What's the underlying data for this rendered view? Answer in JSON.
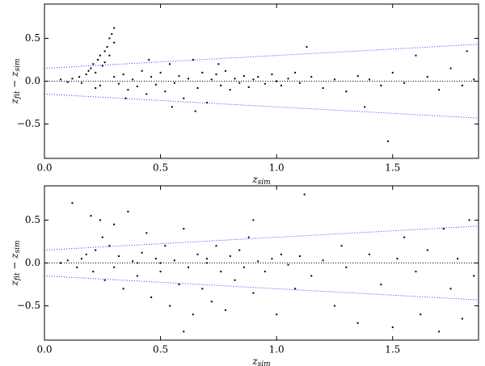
{
  "chart_data": [
    {
      "type": "scatter",
      "xlabel": [
        "z",
        "sim"
      ],
      "ylabel": [
        "z",
        "fit",
        " − z",
        "sim"
      ],
      "xlim": [
        0,
        1.87
      ],
      "ylim": [
        -0.9,
        0.9
      ],
      "xticks": [
        {
          "value": 0,
          "label": "0.0"
        },
        {
          "value": 0.5,
          "label": "0.5"
        },
        {
          "value": 1,
          "label": "1.0"
        },
        {
          "value": 1.5,
          "label": "1.5"
        }
      ],
      "yticks": [
        {
          "value": -0.5,
          "label": "−0.5"
        },
        {
          "value": 0,
          "label": "0.0"
        },
        {
          "value": 0.5,
          "label": "0.5"
        }
      ],
      "series": [
        {
          "color": "#000000",
          "x": [
            0.07,
            0.1,
            0.12,
            0.15,
            0.16,
            0.18,
            0.19,
            0.2,
            0.21,
            0.22,
            0.23,
            0.24,
            0.25,
            0.26,
            0.27,
            0.28,
            0.29,
            0.3,
            0.3,
            0.28,
            0.26,
            0.24,
            0.22,
            0.3,
            0.32,
            0.34,
            0.36,
            0.38,
            0.4,
            0.42,
            0.44,
            0.46,
            0.48,
            0.5,
            0.52,
            0.54,
            0.56,
            0.58,
            0.6,
            0.62,
            0.64,
            0.66,
            0.68,
            0.7,
            0.72,
            0.74,
            0.76,
            0.78,
            0.8,
            0.82,
            0.84,
            0.86,
            0.88,
            0.9,
            0.92,
            0.95,
            0.98,
            1.0,
            1.02,
            1.05,
            1.08,
            1.1,
            1.13,
            1.15,
            1.2,
            1.25,
            1.3,
            1.35,
            1.38,
            1.4,
            1.45,
            1.48,
            1.5,
            1.55,
            1.6,
            1.65,
            1.7,
            1.75,
            1.8,
            1.82,
            1.85,
            0.45,
            0.55,
            0.65,
            0.35,
            0.75
          ],
          "values": [
            0.02,
            -0.01,
            0.03,
            0.05,
            -0.02,
            0.08,
            0.12,
            0.15,
            0.2,
            0.1,
            0.25,
            0.3,
            0.18,
            0.35,
            0.4,
            0.5,
            0.55,
            0.62,
            0.45,
            0.3,
            0.22,
            -0.05,
            -0.08,
            0.05,
            -0.03,
            0.08,
            -0.1,
            0.02,
            -0.06,
            0.12,
            -0.15,
            0.05,
            -0.04,
            0.1,
            -0.12,
            0.2,
            -0.02,
            0.06,
            -0.2,
            0.03,
            0.25,
            -0.08,
            0.1,
            -0.25,
            0.02,
            0.08,
            -0.05,
            0.12,
            -0.1,
            0.03,
            -0.02,
            0.06,
            -0.07,
            0.02,
            0.05,
            -0.03,
            0.08,
            0.0,
            -0.05,
            0.03,
            0.1,
            -0.02,
            0.4,
            0.05,
            -0.08,
            0.02,
            -0.12,
            0.06,
            -0.3,
            0.02,
            -0.05,
            -0.7,
            0.1,
            -0.02,
            0.3,
            0.05,
            -0.1,
            0.15,
            -0.05,
            0.35,
            0.02,
            0.25,
            -0.3,
            -0.35,
            -0.2,
            0.2
          ]
        }
      ],
      "lines": [
        {
          "color": "#000000",
          "x": [
            0,
            1.87
          ],
          "values": [
            0,
            0
          ]
        },
        {
          "color": "#3333ff",
          "x": [
            0,
            1.87
          ],
          "values": [
            0.15,
            0.4305
          ]
        },
        {
          "color": "#3333ff",
          "x": [
            0,
            1.87
          ],
          "values": [
            -0.15,
            -0.4305
          ]
        }
      ]
    },
    {
      "type": "scatter",
      "xlabel": [
        "z",
        "sim"
      ],
      "ylabel": [
        "z",
        "fit",
        " − z",
        "sim"
      ],
      "xlim": [
        0,
        1.87
      ],
      "ylim": [
        -0.9,
        0.9
      ],
      "xticks": [
        {
          "value": 0,
          "label": "0.0"
        },
        {
          "value": 0.5,
          "label": "0.5"
        },
        {
          "value": 1,
          "label": "1.0"
        },
        {
          "value": 1.5,
          "label": "1.5"
        }
      ],
      "yticks": [
        {
          "value": -0.5,
          "label": "−0.5"
        },
        {
          "value": 0,
          "label": "0.0"
        },
        {
          "value": 0.5,
          "label": "0.5"
        }
      ],
      "series": [
        {
          "color": "#000000",
          "x": [
            0.07,
            0.1,
            0.12,
            0.14,
            0.16,
            0.18,
            0.2,
            0.21,
            0.22,
            0.24,
            0.25,
            0.26,
            0.28,
            0.3,
            0.3,
            0.32,
            0.34,
            0.36,
            0.38,
            0.4,
            0.42,
            0.44,
            0.46,
            0.48,
            0.5,
            0.52,
            0.54,
            0.56,
            0.58,
            0.6,
            0.62,
            0.64,
            0.66,
            0.68,
            0.7,
            0.72,
            0.74,
            0.76,
            0.78,
            0.8,
            0.82,
            0.84,
            0.86,
            0.88,
            0.9,
            0.92,
            0.95,
            0.98,
            1.0,
            1.02,
            1.05,
            1.08,
            1.1,
            1.12,
            1.15,
            1.2,
            1.25,
            1.28,
            1.3,
            1.35,
            1.4,
            1.45,
            1.5,
            1.52,
            1.55,
            1.6,
            1.62,
            1.65,
            1.7,
            1.72,
            1.75,
            1.78,
            1.8,
            1.83,
            1.85,
            0.9,
            0.6,
            0.4,
            0.5,
            0.7
          ],
          "values": [
            0.0,
            0.03,
            0.7,
            -0.05,
            0.05,
            0.1,
            0.55,
            -0.1,
            0.15,
            0.5,
            0.3,
            -0.2,
            0.2,
            -0.05,
            0.45,
            0.08,
            -0.3,
            0.6,
            0.02,
            -0.15,
            0.12,
            0.35,
            -0.4,
            0.05,
            -0.1,
            0.2,
            -0.5,
            0.03,
            -0.25,
            0.4,
            -0.05,
            -0.6,
            0.1,
            -0.3,
            0.05,
            -0.45,
            0.2,
            -0.1,
            -0.55,
            0.08,
            -0.2,
            0.15,
            -0.05,
            0.3,
            -0.35,
            0.02,
            -0.1,
            0.05,
            -0.6,
            0.1,
            -0.02,
            -0.3,
            0.08,
            0.8,
            -0.15,
            0.03,
            -0.5,
            0.2,
            -0.05,
            -0.7,
            0.1,
            -0.25,
            -0.75,
            0.05,
            0.3,
            -0.1,
            -0.6,
            0.15,
            -0.8,
            0.4,
            -0.3,
            0.05,
            -0.65,
            0.5,
            -0.15,
            0.5,
            -0.8,
            0.0,
            0.0,
            0.0
          ]
        }
      ],
      "lines": [
        {
          "color": "#000000",
          "x": [
            0,
            1.87
          ],
          "values": [
            0,
            0
          ]
        },
        {
          "color": "#3333ff",
          "x": [
            0,
            1.87
          ],
          "values": [
            0.15,
            0.4305
          ]
        },
        {
          "color": "#3333ff",
          "x": [
            0,
            1.87
          ],
          "values": [
            -0.15,
            -0.4305
          ]
        }
      ]
    }
  ]
}
